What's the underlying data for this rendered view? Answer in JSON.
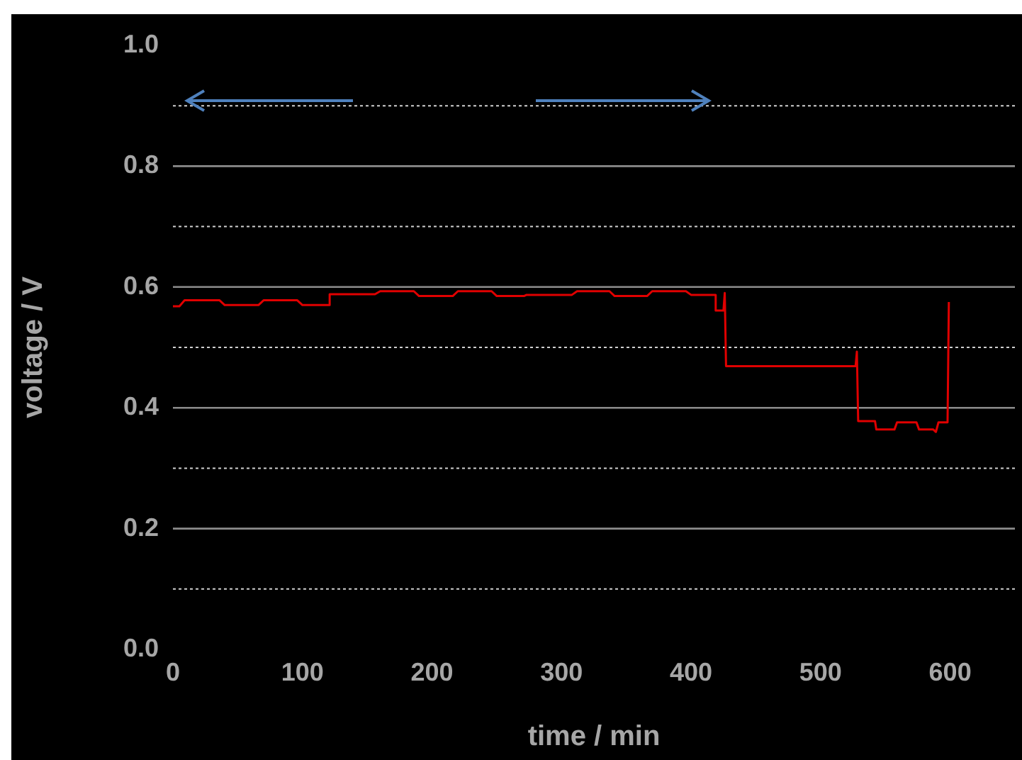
{
  "chart_data": {
    "type": "line",
    "xlabel": "time / min",
    "ylabel": "voltage / V",
    "series": [
      {
        "color": "#e00000",
        "x": [
          0,
          5,
          9,
          36,
          40,
          66,
          70,
          96,
          100,
          121,
          121,
          156,
          160,
          186,
          190,
          216,
          220,
          246,
          250,
          271,
          273,
          308,
          312,
          337,
          341,
          366,
          370,
          396,
          400,
          419,
          419,
          425,
          426,
          427,
          527,
          528,
          529,
          542,
          543,
          557,
          559,
          574,
          576,
          587,
          589,
          591,
          598,
          599
        ],
        "values": [
          0.568,
          0.568,
          0.578,
          0.578,
          0.57,
          0.57,
          0.578,
          0.578,
          0.57,
          0.57,
          0.588,
          0.588,
          0.593,
          0.593,
          0.585,
          0.585,
          0.593,
          0.593,
          0.585,
          0.585,
          0.587,
          0.587,
          0.593,
          0.593,
          0.585,
          0.585,
          0.593,
          0.593,
          0.587,
          0.587,
          0.561,
          0.561,
          0.59,
          0.469,
          0.469,
          0.493,
          0.378,
          0.378,
          0.364,
          0.364,
          0.376,
          0.376,
          0.364,
          0.364,
          0.36,
          0.376,
          0.376,
          0.575
        ]
      }
    ],
    "xlim": [
      0,
      650
    ],
    "xticks": [
      0,
      100,
      200,
      300,
      400,
      500,
      600
    ],
    "ylim": [
      0,
      1
    ],
    "yticks": [
      {
        "value": 0,
        "label": "0.0"
      },
      {
        "value": 0.1,
        "label": null
      },
      0.2,
      {
        "value": 0.3,
        "label": null
      },
      0.4,
      {
        "value": 0.5,
        "label": null
      },
      0.6,
      {
        "value": 0.7,
        "label": null
      },
      0.8,
      {
        "value": 0.9,
        "label": null
      },
      {
        "value": 1,
        "label": "1.0"
      }
    ],
    "grid": "y",
    "legend": false,
    "marker": "none",
    "line_style": "solid"
  }
}
